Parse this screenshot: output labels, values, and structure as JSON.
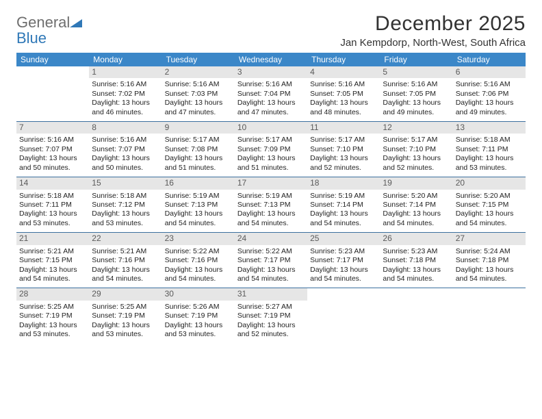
{
  "logo": {
    "word1": "General",
    "word2": "Blue"
  },
  "header": {
    "month_title": "December 2025",
    "location": "Jan Kempdorp, North-West, South Africa"
  },
  "colors": {
    "header_bg": "#3b87c8",
    "header_text": "#ffffff",
    "daynum_bg": "#e6e6e6",
    "daynum_text": "#5a5a5a",
    "row_border": "#3b6f9e",
    "body_text": "#222222",
    "logo_gray": "#6e6e6e",
    "logo_blue": "#2f78b7"
  },
  "daysOfWeek": [
    "Sunday",
    "Monday",
    "Tuesday",
    "Wednesday",
    "Thursday",
    "Friday",
    "Saturday"
  ],
  "weeks": [
    [
      null,
      {
        "n": "1",
        "rise": "5:16 AM",
        "set": "7:02 PM",
        "dh": "13",
        "dm": "46"
      },
      {
        "n": "2",
        "rise": "5:16 AM",
        "set": "7:03 PM",
        "dh": "13",
        "dm": "47"
      },
      {
        "n": "3",
        "rise": "5:16 AM",
        "set": "7:04 PM",
        "dh": "13",
        "dm": "47"
      },
      {
        "n": "4",
        "rise": "5:16 AM",
        "set": "7:05 PM",
        "dh": "13",
        "dm": "48"
      },
      {
        "n": "5",
        "rise": "5:16 AM",
        "set": "7:05 PM",
        "dh": "13",
        "dm": "49"
      },
      {
        "n": "6",
        "rise": "5:16 AM",
        "set": "7:06 PM",
        "dh": "13",
        "dm": "49"
      }
    ],
    [
      {
        "n": "7",
        "rise": "5:16 AM",
        "set": "7:07 PM",
        "dh": "13",
        "dm": "50"
      },
      {
        "n": "8",
        "rise": "5:16 AM",
        "set": "7:07 PM",
        "dh": "13",
        "dm": "50"
      },
      {
        "n": "9",
        "rise": "5:17 AM",
        "set": "7:08 PM",
        "dh": "13",
        "dm": "51"
      },
      {
        "n": "10",
        "rise": "5:17 AM",
        "set": "7:09 PM",
        "dh": "13",
        "dm": "51"
      },
      {
        "n": "11",
        "rise": "5:17 AM",
        "set": "7:10 PM",
        "dh": "13",
        "dm": "52"
      },
      {
        "n": "12",
        "rise": "5:17 AM",
        "set": "7:10 PM",
        "dh": "13",
        "dm": "52"
      },
      {
        "n": "13",
        "rise": "5:18 AM",
        "set": "7:11 PM",
        "dh": "13",
        "dm": "53"
      }
    ],
    [
      {
        "n": "14",
        "rise": "5:18 AM",
        "set": "7:11 PM",
        "dh": "13",
        "dm": "53"
      },
      {
        "n": "15",
        "rise": "5:18 AM",
        "set": "7:12 PM",
        "dh": "13",
        "dm": "53"
      },
      {
        "n": "16",
        "rise": "5:19 AM",
        "set": "7:13 PM",
        "dh": "13",
        "dm": "54"
      },
      {
        "n": "17",
        "rise": "5:19 AM",
        "set": "7:13 PM",
        "dh": "13",
        "dm": "54"
      },
      {
        "n": "18",
        "rise": "5:19 AM",
        "set": "7:14 PM",
        "dh": "13",
        "dm": "54"
      },
      {
        "n": "19",
        "rise": "5:20 AM",
        "set": "7:14 PM",
        "dh": "13",
        "dm": "54"
      },
      {
        "n": "20",
        "rise": "5:20 AM",
        "set": "7:15 PM",
        "dh": "13",
        "dm": "54"
      }
    ],
    [
      {
        "n": "21",
        "rise": "5:21 AM",
        "set": "7:15 PM",
        "dh": "13",
        "dm": "54"
      },
      {
        "n": "22",
        "rise": "5:21 AM",
        "set": "7:16 PM",
        "dh": "13",
        "dm": "54"
      },
      {
        "n": "23",
        "rise": "5:22 AM",
        "set": "7:16 PM",
        "dh": "13",
        "dm": "54"
      },
      {
        "n": "24",
        "rise": "5:22 AM",
        "set": "7:17 PM",
        "dh": "13",
        "dm": "54"
      },
      {
        "n": "25",
        "rise": "5:23 AM",
        "set": "7:17 PM",
        "dh": "13",
        "dm": "54"
      },
      {
        "n": "26",
        "rise": "5:23 AM",
        "set": "7:18 PM",
        "dh": "13",
        "dm": "54"
      },
      {
        "n": "27",
        "rise": "5:24 AM",
        "set": "7:18 PM",
        "dh": "13",
        "dm": "54"
      }
    ],
    [
      {
        "n": "28",
        "rise": "5:25 AM",
        "set": "7:19 PM",
        "dh": "13",
        "dm": "53"
      },
      {
        "n": "29",
        "rise": "5:25 AM",
        "set": "7:19 PM",
        "dh": "13",
        "dm": "53"
      },
      {
        "n": "30",
        "rise": "5:26 AM",
        "set": "7:19 PM",
        "dh": "13",
        "dm": "53"
      },
      {
        "n": "31",
        "rise": "5:27 AM",
        "set": "7:19 PM",
        "dh": "13",
        "dm": "52"
      },
      null,
      null,
      null
    ]
  ],
  "labels": {
    "sunrise_prefix": "Sunrise: ",
    "sunset_prefix": "Sunset: ",
    "daylight_prefix": "Daylight: ",
    "hours_word": " hours",
    "and_word": "and ",
    "minutes_word": " minutes."
  }
}
